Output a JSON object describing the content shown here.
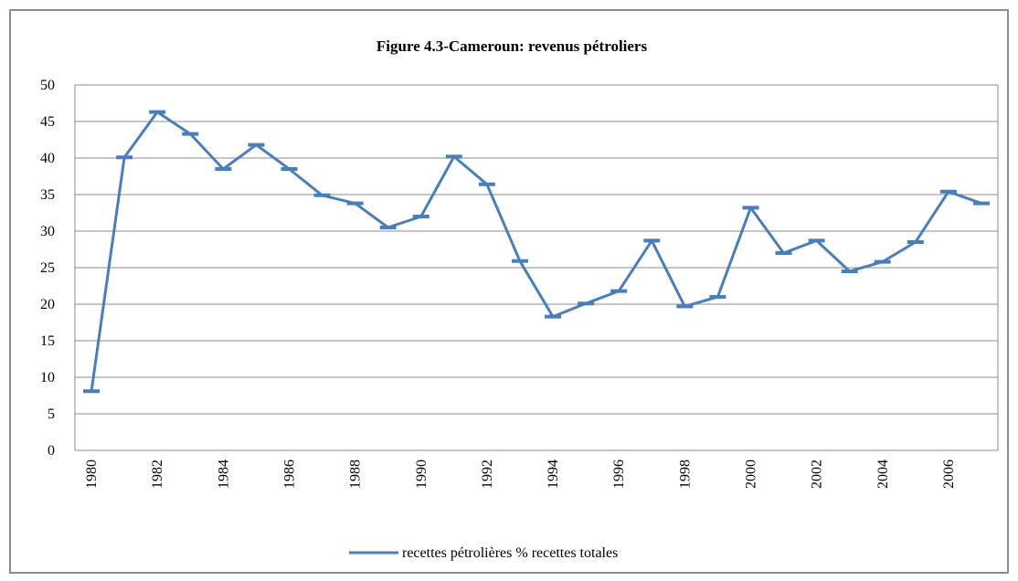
{
  "chart_data": {
    "type": "line",
    "title": "Figure  4.3-Cameroun: revenus pétroliers",
    "xlabel": "",
    "ylabel": "",
    "ylim": [
      0,
      50
    ],
    "y_ticks": [
      "0",
      "5",
      "10",
      "15",
      "20",
      "25",
      "30",
      "35",
      "40",
      "45",
      "50"
    ],
    "x_tick_labels": [
      "1980",
      "1982",
      "1984",
      "1986",
      "1988",
      "1990",
      "1992",
      "1994",
      "1996",
      "1998",
      "2000",
      "2002",
      "2004",
      "2006"
    ],
    "grid": true,
    "legend_position": "bottom",
    "x": [
      1980,
      1981,
      1982,
      1983,
      1984,
      1985,
      1986,
      1987,
      1988,
      1989,
      1990,
      1991,
      1992,
      1993,
      1994,
      1995,
      1996,
      1997,
      1998,
      1999,
      2000,
      2001,
      2002,
      2003,
      2004,
      2005,
      2006,
      2007
    ],
    "series": [
      {
        "name": "recettes pétrolières % recettes totales",
        "color": "#4a7ebb",
        "values": [
          8.1,
          40.1,
          46.3,
          43.3,
          38.5,
          41.8,
          38.5,
          34.9,
          33.8,
          30.5,
          32.0,
          40.2,
          36.4,
          25.9,
          18.3,
          20.1,
          21.8,
          28.7,
          19.7,
          21.0,
          33.2,
          27.0,
          28.7,
          24.5,
          25.8,
          28.5,
          35.4,
          33.8
        ]
      }
    ]
  }
}
